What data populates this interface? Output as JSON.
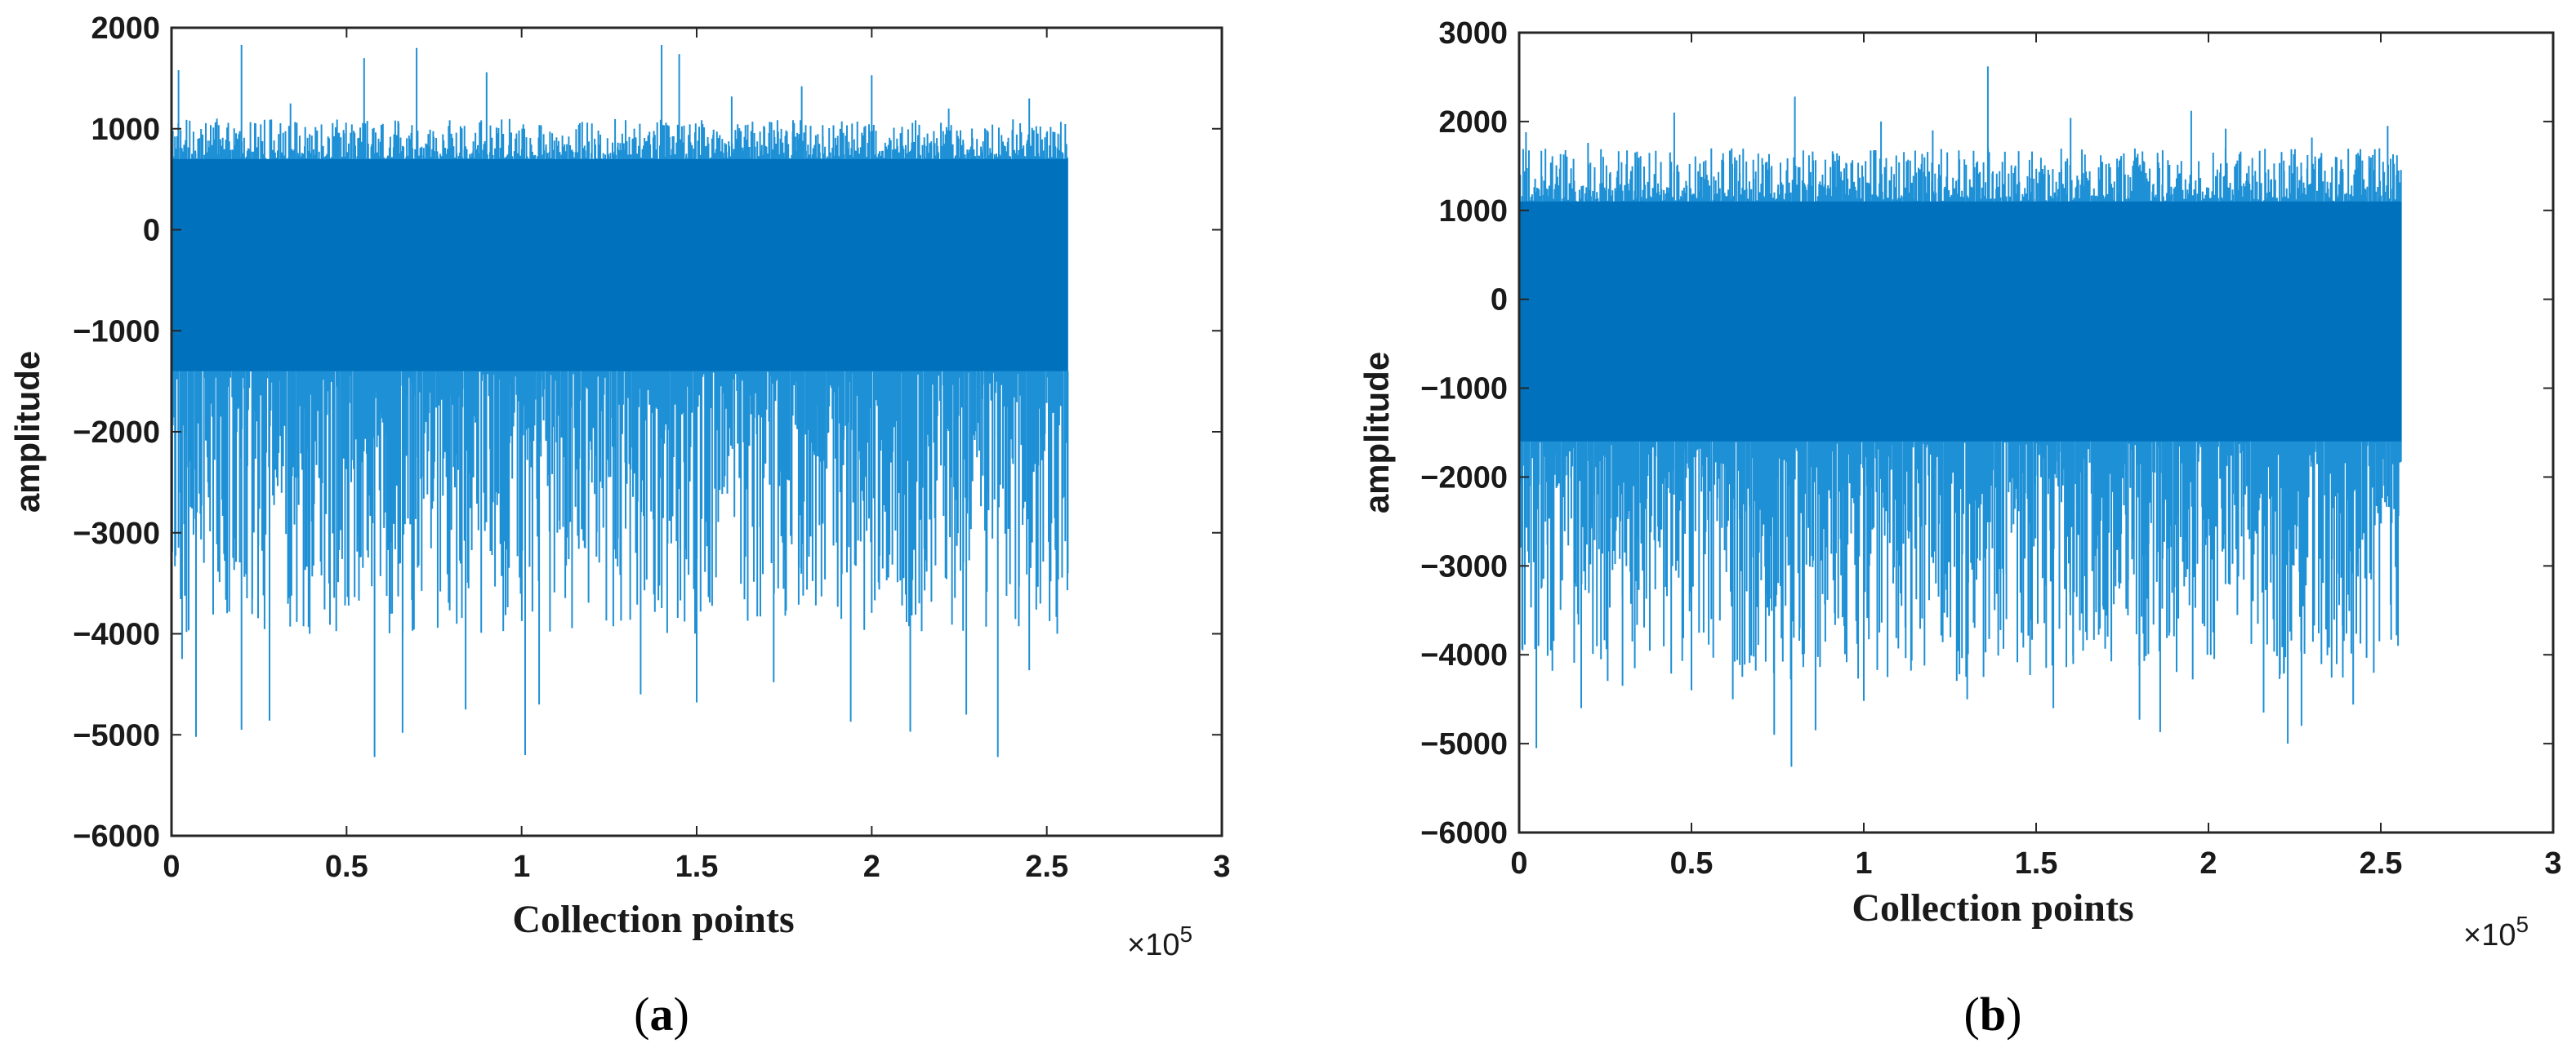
{
  "chart_data": [
    {
      "type": "line",
      "caption": "(a)",
      "caption_letter": "a",
      "xlabel": "Collection points",
      "ylabel": "amplitude",
      "x_multiplier": "×10",
      "x_multiplier_exponent": "5",
      "xlim": [
        0,
        3
      ],
      "ylim": [
        -6000,
        2000
      ],
      "xticks": [
        "0",
        "0.5",
        "1",
        "1.5",
        "2",
        "2.5",
        "3"
      ],
      "yticks": [
        "2000",
        "1000",
        "0",
        "-1000",
        "-2000",
        "-3000",
        "-4000",
        "-5000",
        "-6000"
      ],
      "grid": false,
      "series_color": "#0072BD",
      "spike_color": "#1E90D6",
      "x_extent": [
        0,
        2.56
      ],
      "band_upper": 700,
      "band_lower": -1400,
      "series": [
        {
          "x_max": 2.56,
          "dense_range": [
            -1400,
            700
          ],
          "typical_envelope": [
            -4000,
            1100
          ],
          "extreme_max": [
            [
              0.2,
              1830
            ],
            [
              0.02,
              1580
            ],
            [
              0.34,
              1250
            ],
            [
              0.55,
              1700
            ],
            [
              0.7,
              1800
            ],
            [
              0.9,
              1560
            ],
            [
              1.4,
              1830
            ],
            [
              1.45,
              1740
            ],
            [
              1.6,
              1320
            ],
            [
              1.8,
              1420
            ],
            [
              2.0,
              1530
            ],
            [
              2.22,
              1200
            ],
            [
              2.45,
              1300
            ]
          ],
          "extreme_min": [
            [
              0.03,
              -4250
            ],
            [
              0.07,
              -5020
            ],
            [
              0.2,
              -4950
            ],
            [
              0.28,
              -4860
            ],
            [
              0.58,
              -5220
            ],
            [
              0.66,
              -4980
            ],
            [
              0.84,
              -4750
            ],
            [
              1.01,
              -5200
            ],
            [
              1.05,
              -4700
            ],
            [
              1.34,
              -4600
            ],
            [
              1.5,
              -4680
            ],
            [
              1.72,
              -4480
            ],
            [
              1.94,
              -4870
            ],
            [
              2.11,
              -4970
            ],
            [
              2.27,
              -4800
            ],
            [
              2.36,
              -5220
            ],
            [
              2.45,
              -4360
            ],
            [
              2.53,
              -4000
            ],
            [
              2.56,
              -3400
            ]
          ]
        }
      ]
    },
    {
      "type": "line",
      "caption": "(b)",
      "caption_letter": "b",
      "xlabel": "Collection points",
      "ylabel": "amplitude",
      "x_multiplier": "×10",
      "x_multiplier_exponent": "5",
      "xlim": [
        0,
        3
      ],
      "ylim": [
        -6000,
        3000
      ],
      "xticks": [
        "0",
        "0.5",
        "1",
        "1.5",
        "2",
        "2.5",
        "3"
      ],
      "yticks": [
        "3000",
        "2000",
        "1000",
        "0",
        "-1000",
        "-2000",
        "-3000",
        "-4000",
        "-5000",
        "-6000"
      ],
      "grid": false,
      "series_color": "#0072BD",
      "spike_color": "#1E90D6",
      "x_extent": [
        0,
        2.56
      ],
      "band_upper": 1100,
      "band_lower": -1600,
      "series": [
        {
          "x_max": 2.56,
          "dense_range": [
            -1600,
            1100
          ],
          "typical_envelope": [
            -4300,
            1700
          ],
          "extreme_max": [
            [
              0.02,
              1880
            ],
            [
              0.2,
              1760
            ],
            [
              0.45,
              2100
            ],
            [
              0.8,
              2280
            ],
            [
              1.05,
              2000
            ],
            [
              1.2,
              1900
            ],
            [
              1.36,
              2620
            ],
            [
              1.6,
              2040
            ],
            [
              1.95,
              2120
            ],
            [
              2.05,
              1920
            ],
            [
              2.3,
              1820
            ],
            [
              2.52,
              1950
            ]
          ],
          "extreme_min": [
            [
              0.01,
              -3950
            ],
            [
              0.05,
              -5050
            ],
            [
              0.18,
              -4600
            ],
            [
              0.3,
              -4350
            ],
            [
              0.5,
              -4400
            ],
            [
              0.62,
              -4500
            ],
            [
              0.74,
              -4900
            ],
            [
              0.79,
              -5260
            ],
            [
              0.86,
              -4850
            ],
            [
              1.0,
              -4520
            ],
            [
              1.3,
              -4500
            ],
            [
              1.55,
              -4600
            ],
            [
              1.8,
              -4730
            ],
            [
              1.86,
              -4870
            ],
            [
              2.16,
              -4650
            ],
            [
              2.23,
              -5000
            ],
            [
              2.27,
              -4800
            ],
            [
              2.42,
              -4560
            ],
            [
              2.55,
              -3900
            ]
          ]
        }
      ]
    }
  ]
}
